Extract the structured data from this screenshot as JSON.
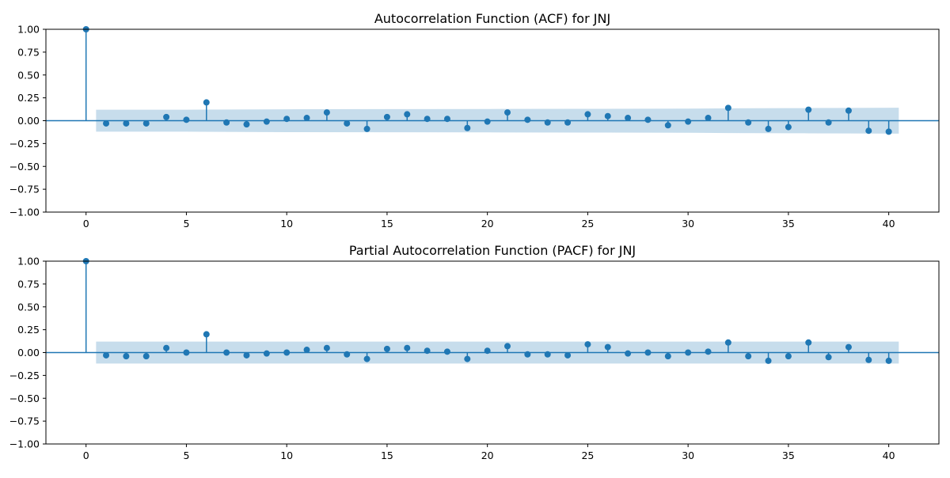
{
  "chart_data": [
    {
      "type": "stem",
      "title": "Autocorrelation Function (ACF) for JNJ",
      "xlabel": "",
      "ylabel": "",
      "xlim": [
        -2,
        42.5
      ],
      "ylim": [
        -1.0,
        1.0
      ],
      "xticks": [
        0,
        5,
        10,
        15,
        20,
        25,
        30,
        35,
        40
      ],
      "yticks": [
        "1.00",
        "0.75",
        "0.50",
        "0.25",
        "0.00",
        "−0.25",
        "−0.50",
        "−0.75",
        "−1.00"
      ],
      "yticks_values": [
        1.0,
        0.75,
        0.5,
        0.25,
        0.0,
        -0.25,
        -0.5,
        -0.75,
        -1.0
      ],
      "grid": false,
      "color": "#1f77b4",
      "band_color": "#1f77b4",
      "band_opacity": 0.25,
      "lags": [
        0,
        1,
        2,
        3,
        4,
        5,
        6,
        7,
        8,
        9,
        10,
        11,
        12,
        13,
        14,
        15,
        16,
        17,
        18,
        19,
        20,
        21,
        22,
        23,
        24,
        25,
        26,
        27,
        28,
        29,
        30,
        31,
        32,
        33,
        34,
        35,
        36,
        37,
        38,
        39,
        40
      ],
      "values": [
        1.0,
        -0.03,
        -0.03,
        -0.03,
        0.04,
        0.01,
        0.2,
        -0.02,
        -0.04,
        -0.01,
        0.02,
        0.03,
        0.09,
        -0.03,
        -0.09,
        0.04,
        0.07,
        0.02,
        0.02,
        -0.08,
        -0.01,
        0.09,
        0.01,
        -0.02,
        -0.02,
        0.07,
        0.05,
        0.03,
        0.01,
        -0.05,
        -0.01,
        0.03,
        0.14,
        -0.02,
        -0.09,
        -0.07,
        0.12,
        -0.02,
        0.11,
        -0.11,
        -0.12
      ],
      "confidence_band": {
        "lags": [
          0.5,
          5,
          10,
          15,
          20,
          25,
          30,
          32,
          35,
          36,
          38,
          40.5
        ],
        "half_width": [
          0.12,
          0.12,
          0.125,
          0.127,
          0.128,
          0.13,
          0.132,
          0.135,
          0.137,
          0.138,
          0.14,
          0.142
        ]
      }
    },
    {
      "type": "stem",
      "title": "Partial Autocorrelation Function (PACF) for JNJ",
      "xlabel": "",
      "ylabel": "",
      "xlim": [
        -2,
        42.5
      ],
      "ylim": [
        -1.0,
        1.0
      ],
      "xticks": [
        0,
        5,
        10,
        15,
        20,
        25,
        30,
        35,
        40
      ],
      "yticks": [
        "1.00",
        "0.75",
        "0.50",
        "0.25",
        "0.00",
        "−0.25",
        "−0.50",
        "−0.75",
        "−1.00"
      ],
      "yticks_values": [
        1.0,
        0.75,
        0.5,
        0.25,
        0.0,
        -0.25,
        -0.5,
        -0.75,
        -1.0
      ],
      "grid": false,
      "color": "#1f77b4",
      "band_color": "#1f77b4",
      "band_opacity": 0.25,
      "lags": [
        0,
        1,
        2,
        3,
        4,
        5,
        6,
        7,
        8,
        9,
        10,
        11,
        12,
        13,
        14,
        15,
        16,
        17,
        18,
        19,
        20,
        21,
        22,
        23,
        24,
        25,
        26,
        27,
        28,
        29,
        30,
        31,
        32,
        33,
        34,
        35,
        36,
        37,
        38,
        39,
        40
      ],
      "values": [
        1.0,
        -0.03,
        -0.04,
        -0.04,
        0.05,
        0.0,
        0.2,
        0.0,
        -0.03,
        -0.01,
        0.0,
        0.03,
        0.05,
        -0.02,
        -0.07,
        0.04,
        0.05,
        0.02,
        0.01,
        -0.07,
        0.02,
        0.07,
        -0.02,
        -0.02,
        -0.03,
        0.09,
        0.06,
        -0.01,
        0.0,
        -0.04,
        0.0,
        0.01,
        0.11,
        -0.04,
        -0.09,
        -0.04,
        0.11,
        -0.05,
        0.06,
        -0.08,
        -0.09
      ],
      "confidence_band": {
        "lags": [
          0.5,
          40.5
        ],
        "half_width": [
          0.12,
          0.12
        ]
      }
    }
  ]
}
